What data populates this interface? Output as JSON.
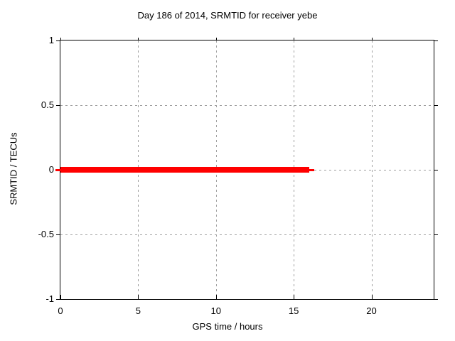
{
  "figure": {
    "title": "Day 186 of 2014, SRMTID for receiver yebe"
  },
  "chart_data": {
    "type": "line",
    "title": "Day 186 of 2014, SRMTID for receiver yebe",
    "xlabel": "GPS time / hours",
    "ylabel": "SRMTID / TECUs",
    "xlim": [
      0,
      24
    ],
    "ylim": [
      -1,
      1
    ],
    "grid": true,
    "legend": "none",
    "x_ticks": [
      {
        "v": 0,
        "label": "0"
      },
      {
        "v": 5,
        "label": "5"
      },
      {
        "v": 10,
        "label": "10"
      },
      {
        "v": 15,
        "label": "15"
      },
      {
        "v": 20,
        "label": "20"
      }
    ],
    "y_ticks": [
      {
        "v": -1,
        "label": "-1"
      },
      {
        "v": -0.5,
        "label": "-0.5"
      },
      {
        "v": 0,
        "label": "0"
      },
      {
        "v": 0.5,
        "label": "0.5"
      },
      {
        "v": 1,
        "label": "1"
      }
    ],
    "series": [
      {
        "name": "SRMTID",
        "color": "#ff0000",
        "value_tecus": 0,
        "points": [
          [
            0,
            0
          ],
          [
            16.0,
            0
          ]
        ],
        "lead": [
          [
            -0.32,
            0
          ],
          [
            0,
            0
          ]
        ],
        "tail": [
          [
            16.0,
            0
          ],
          [
            16.3,
            0
          ]
        ]
      }
    ]
  },
  "colors": {
    "line": "#ff0000",
    "grid": "#9f9f9f",
    "axis": "#000000",
    "background": "#ffffff",
    "text": "#000000"
  }
}
